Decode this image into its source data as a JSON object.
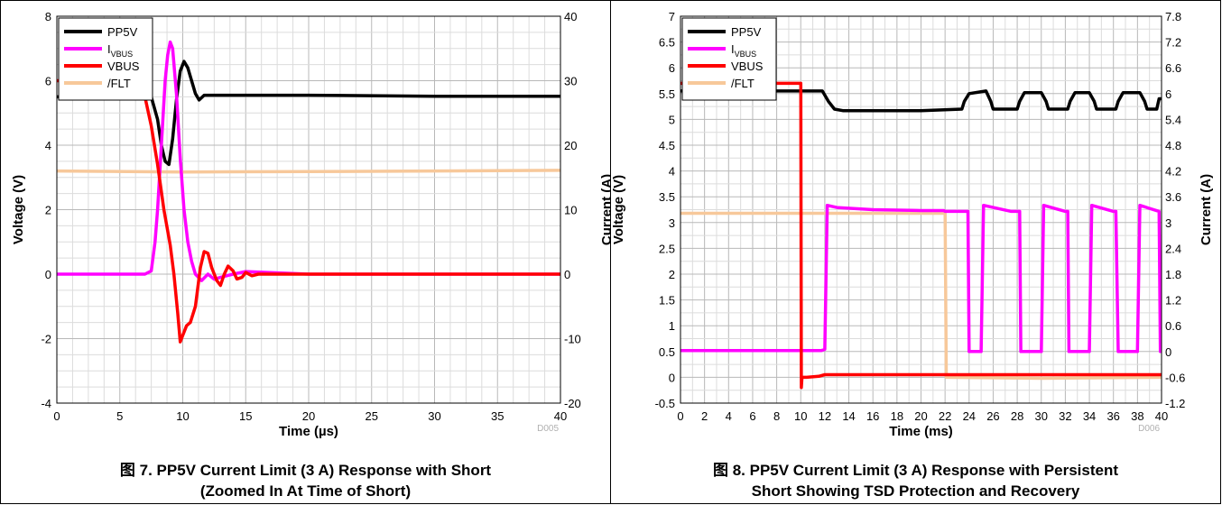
{
  "chart_data": [
    {
      "type": "line",
      "title": "",
      "xlabel": "Time (µs)",
      "ylabel_left": "Voltage (V)",
      "ylabel_right": "Current (A)",
      "xlim": [
        0,
        40
      ],
      "ylim_left": [
        -4,
        8
      ],
      "ylim_right": [
        -20,
        40
      ],
      "xticks": [
        "0",
        "5",
        "10",
        "15",
        "20",
        "25",
        "30",
        "35",
        "40"
      ],
      "yticks_left": [
        "-4",
        "-2",
        "0",
        "2",
        "4",
        "6",
        "8"
      ],
      "yticks_right": [
        "-20",
        "-10",
        "0",
        "10",
        "20",
        "30",
        "40"
      ],
      "grid": true,
      "legend_position": "top-left",
      "id_text": "D005",
      "caption_line1": "图 7. PP5V Current Limit (3 A) Response with Short",
      "caption_line2": "(Zoomed In At Time of Short)",
      "series": [
        {
          "name": "PP5V",
          "axis": "left",
          "color": "#000000",
          "x": [
            0,
            7.5,
            8.0,
            8.3,
            8.6,
            8.9,
            9.2,
            9.5,
            9.8,
            10.1,
            10.4,
            10.7,
            11.0,
            11.3,
            11.7,
            12,
            13,
            20,
            30,
            40
          ],
          "y": [
            5.5,
            5.5,
            4.8,
            4.0,
            3.5,
            3.4,
            4.2,
            5.4,
            6.3,
            6.6,
            6.4,
            6.0,
            5.6,
            5.4,
            5.55,
            5.55,
            5.55,
            5.55,
            5.52,
            5.52
          ]
        },
        {
          "name": "I",
          "name_sub": "VBUS",
          "axis": "right",
          "color": "#ff00ff",
          "x": [
            0,
            7.0,
            7.5,
            7.8,
            8.0,
            8.3,
            8.6,
            8.8,
            9.0,
            9.2,
            9.5,
            9.8,
            10.1,
            10.4,
            10.7,
            11.0,
            11.5,
            12.0,
            12.5,
            13,
            14,
            15,
            20,
            30,
            40
          ],
          "y": [
            0,
            0,
            0.5,
            5,
            10,
            20,
            30,
            34,
            36,
            35,
            28,
            18,
            10,
            5,
            2,
            0,
            -1,
            0,
            -0.8,
            -0.5,
            0,
            0.4,
            0,
            0,
            0
          ]
        },
        {
          "name": "VBUS",
          "axis": "left",
          "color": "#ff0000",
          "x": [
            0,
            6.5,
            7.0,
            7.5,
            8.0,
            8.5,
            9.0,
            9.3,
            9.6,
            9.8,
            10.0,
            10.3,
            10.6,
            11.0,
            11.4,
            11.7,
            12.0,
            12.3,
            12.7,
            13.0,
            13.3,
            13.6,
            14.0,
            14.3,
            14.7,
            15.0,
            15.5,
            16,
            20,
            30,
            40
          ],
          "y": [
            6.0,
            6.0,
            5.5,
            4.6,
            3.4,
            2.0,
            0.9,
            0.0,
            -1.2,
            -2.1,
            -1.9,
            -1.6,
            -1.5,
            -1.0,
            0.2,
            0.7,
            0.65,
            0.2,
            -0.2,
            -0.35,
            0.0,
            0.25,
            0.1,
            -0.15,
            -0.1,
            0.05,
            -0.05,
            0.0,
            0.0,
            0.0,
            0.0
          ]
        },
        {
          "name": "/FLT",
          "axis": "left",
          "color": "#f7c89a",
          "x": [
            0,
            10,
            20,
            30,
            40
          ],
          "y": [
            3.2,
            3.17,
            3.18,
            3.2,
            3.22
          ]
        }
      ]
    },
    {
      "type": "line",
      "title": "",
      "xlabel": "Time (ms)",
      "ylabel_left": "Voltage (V)",
      "ylabel_right": "Current (A)",
      "xlim": [
        0,
        40
      ],
      "ylim_left": [
        -0.5,
        7
      ],
      "ylim_right": [
        -1.2,
        7.8
      ],
      "xticks": [
        "0",
        "2",
        "4",
        "6",
        "8",
        "10",
        "12",
        "14",
        "16",
        "18",
        "20",
        "22",
        "24",
        "26",
        "28",
        "30",
        "32",
        "34",
        "36",
        "38",
        "40"
      ],
      "yticks_left": [
        "-0.5",
        "0",
        "0.5",
        "1",
        "1.5",
        "2",
        "2.5",
        "3",
        "3.5",
        "4",
        "4.5",
        "5",
        "5.5",
        "6",
        "6.5",
        "7"
      ],
      "yticks_right": [
        "-1.2",
        "-0.6",
        "0",
        "0.6",
        "1.2",
        "1.8",
        "2.4",
        "3",
        "3.6",
        "4.2",
        "4.8",
        "5.4",
        "6",
        "6.6",
        "7.2",
        "7.8"
      ],
      "grid": true,
      "legend_position": "top-left",
      "id_text": "D006",
      "caption_line1": "图 8. PP5V Current Limit (3 A) Response with Persistent",
      "caption_line2": "Short Showing TSD Protection and Recovery",
      "series": [
        {
          "name": "PP5V",
          "axis": "left",
          "color": "#000000",
          "x": [
            0,
            11.8,
            12.3,
            12.8,
            13.5,
            20,
            23.4,
            23.6,
            24.0,
            25.4,
            25.8,
            26.0,
            28.0,
            28.2,
            28.6,
            30.0,
            30.4,
            30.6,
            32.2,
            32.4,
            32.8,
            34.0,
            34.4,
            34.6,
            36.2,
            36.4,
            36.8,
            38.2,
            38.6,
            38.8,
            39.6,
            39.8,
            40
          ],
          "y": [
            5.55,
            5.55,
            5.35,
            5.2,
            5.17,
            5.17,
            5.2,
            5.35,
            5.5,
            5.55,
            5.35,
            5.2,
            5.2,
            5.35,
            5.52,
            5.52,
            5.35,
            5.2,
            5.2,
            5.35,
            5.52,
            5.52,
            5.35,
            5.2,
            5.2,
            5.35,
            5.52,
            5.52,
            5.35,
            5.2,
            5.2,
            5.4,
            5.4
          ]
        },
        {
          "name": "I",
          "name_sub": "VBUS",
          "axis": "right",
          "color": "#ff00ff",
          "x": [
            0,
            11.7,
            12.0,
            12.2,
            13.0,
            16,
            20,
            21.9,
            22.0,
            23.9,
            24.0,
            24.3,
            25.0,
            25.2,
            27.5,
            28.2,
            28.3,
            30.0,
            30.2,
            32.0,
            32.2,
            32.3,
            34.0,
            34.2,
            36.0,
            36.2,
            36.4,
            38.0,
            38.2,
            39.8,
            39.9
          ],
          "y": [
            0.02,
            0.02,
            0.05,
            3.4,
            3.35,
            3.3,
            3.28,
            3.28,
            3.26,
            3.26,
            0,
            0,
            0,
            3.4,
            3.26,
            3.26,
            0,
            0,
            3.4,
            3.26,
            3.26,
            0,
            0,
            3.4,
            3.26,
            3.26,
            0,
            0,
            3.4,
            3.26,
            0
          ]
        },
        {
          "name": "VBUS",
          "axis": "left",
          "color": "#ff0000",
          "x": [
            0,
            9.9,
            10.0,
            10.05,
            10.1,
            10.5,
            11.5,
            12.0,
            22.0,
            40
          ],
          "y": [
            5.7,
            5.7,
            5.7,
            -0.2,
            0.0,
            0.0,
            0.02,
            0.05,
            0.05,
            0.05
          ]
        },
        {
          "name": "/FLT",
          "axis": "left",
          "color": "#f7c89a",
          "x": [
            0,
            10,
            22.0,
            22.1,
            30,
            40
          ],
          "y": [
            3.18,
            3.18,
            3.18,
            0.0,
            -0.02,
            0.0
          ]
        }
      ]
    }
  ]
}
